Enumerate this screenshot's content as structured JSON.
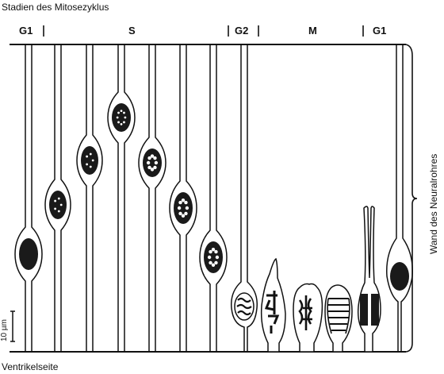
{
  "title": "Stadien des Mitosezyklus",
  "stages": {
    "g1_left": "G1",
    "s": "S",
    "g2": "G2",
    "m": "M",
    "g1_right": "G1"
  },
  "bottom_label": "Ventrikelseite",
  "side_label": "Wand des Neuralrohres",
  "scale_label": "10 µm",
  "colors": {
    "ink": "#111111",
    "nucleus": "#1a1a1a",
    "background": "#ffffff"
  }
}
